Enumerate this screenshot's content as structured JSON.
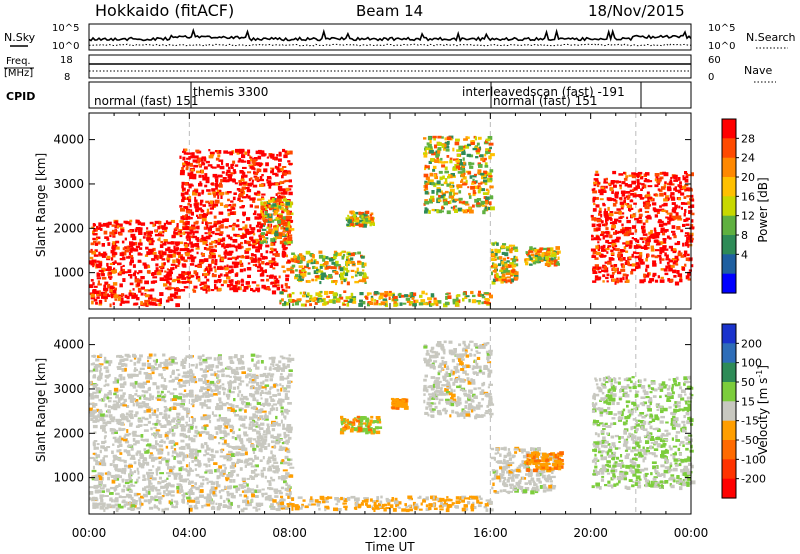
{
  "header": {
    "station": "Hokkaido (fitACF)",
    "beam": "Beam 14",
    "date": "18/Nov/2015"
  },
  "top_panels": {
    "nsky_label": "N.Sky",
    "nsky_ticks": [
      "10^5",
      "10^0"
    ],
    "nsearch_label": "N.Search",
    "nsearch_ticks": [
      "10^5",
      "10^0"
    ],
    "freq_label_1": "Freq.",
    "freq_label_2": "[MHz]",
    "freq_ticks": [
      "18",
      "8"
    ],
    "nave_label": "Nave",
    "nave_ticks": [
      "60",
      "0"
    ],
    "cpid_label": "CPID",
    "cpid_segments": [
      {
        "label": "normal (fast) 151",
        "start_h": 0,
        "end_h": 4.0
      },
      {
        "label": "themis 3300",
        "start_h": 4.0,
        "end_h": 16.0
      },
      {
        "label": "interleavedscan (fast) -191",
        "start_h": 16.0,
        "end_h": 16.0
      },
      {
        "label": "normal (fast) 151",
        "start_h": 16.0,
        "end_h": 21.8
      }
    ]
  },
  "x_axis": {
    "label": "Time UT",
    "ticks": [
      "00:00",
      "04:00",
      "08:00",
      "12:00",
      "16:00",
      "20:00",
      "00:00"
    ]
  },
  "chart_data": [
    {
      "type": "heatmap",
      "title": "",
      "quantity": "Power [dB]",
      "ylabel": "Slant Range [km]",
      "xlabel": "Time UT",
      "xlim_hours": [
        0,
        24
      ],
      "ylim": [
        180,
        4600
      ],
      "yticks": [
        1000,
        2000,
        3000,
        4000
      ],
      "colorbar": {
        "label": "Power [dB]",
        "ticks": [
          "28",
          "24",
          "20",
          "16",
          "12",
          "8",
          "4"
        ],
        "colors": [
          "#ff0000",
          "#ff4a00",
          "#ff8800",
          "#ffc000",
          "#c8d800",
          "#5fb040",
          "#2e8b57",
          "#1e5fa0",
          "#0000ff"
        ]
      },
      "echo_regions": [
        {
          "t": [
            0.0,
            3.6
          ],
          "r": [
            300,
            2200
          ],
          "dominant": "24-28"
        },
        {
          "t": [
            3.6,
            8.0
          ],
          "r": [
            600,
            3800
          ],
          "dominant": "20-28"
        },
        {
          "t": [
            6.8,
            8.0
          ],
          "r": [
            1700,
            2700
          ],
          "dominant": "16-28"
        },
        {
          "t": [
            8.0,
            11.0
          ],
          "r": [
            800,
            1500
          ],
          "dominant": "8-16"
        },
        {
          "t": [
            7.5,
            16.0
          ],
          "r": [
            300,
            600
          ],
          "dominant": "4-20"
        },
        {
          "t": [
            10.2,
            11.3
          ],
          "r": [
            2100,
            2400
          ],
          "dominant": "12-20"
        },
        {
          "t": [
            13.3,
            16.0
          ],
          "r": [
            2400,
            4100
          ],
          "dominant": "12-28"
        },
        {
          "t": [
            16.0,
            17.0
          ],
          "r": [
            800,
            1700
          ],
          "dominant": "12-28"
        },
        {
          "t": [
            17.3,
            18.7
          ],
          "r": [
            1200,
            1600
          ],
          "dominant": "12-16"
        },
        {
          "t": [
            20.0,
            24.0
          ],
          "r": [
            800,
            3300
          ],
          "dominant": "20-28"
        }
      ]
    },
    {
      "type": "heatmap",
      "title": "",
      "quantity": "Velocity [m s^-1]",
      "ylabel": "Slant Range [km]",
      "xlabel": "Time UT",
      "xlim_hours": [
        0,
        24
      ],
      "ylim": [
        180,
        4600
      ],
      "yticks": [
        1000,
        2000,
        3000,
        4000
      ],
      "colorbar": {
        "label": "Velocity [m s",
        "label_exp": "-1",
        "label_close": "]",
        "ticks": [
          "200",
          "100",
          "50",
          "15",
          "-15",
          "-50",
          "-100",
          "-200"
        ],
        "colors": [
          "#1a33cc",
          "#2e6db8",
          "#2e8b57",
          "#7ccd3c",
          "#c8c8c0",
          "#ff9e00",
          "#ff6a00",
          "#ff3300",
          "#ff0000"
        ]
      },
      "echo_regions": [
        {
          "t": [
            0.0,
            8.0
          ],
          "r": [
            300,
            3800
          ],
          "dominant": "-15 to 15 (ground scatter)"
        },
        {
          "t": [
            7.5,
            16.0
          ],
          "r": [
            300,
            600
          ],
          "dominant": "-50 to 15"
        },
        {
          "t": [
            10.0,
            11.5
          ],
          "r": [
            2050,
            2400
          ],
          "dominant": "50-100 / -50"
        },
        {
          "t": [
            12.0,
            12.6
          ],
          "r": [
            2600,
            2800
          ],
          "dominant": "-50 to -100"
        },
        {
          "t": [
            13.3,
            16.0
          ],
          "r": [
            2400,
            4100
          ],
          "dominant": "-15 to 15"
        },
        {
          "t": [
            16.0,
            18.5
          ],
          "r": [
            700,
            1700
          ],
          "dominant": "-15 to 15"
        },
        {
          "t": [
            17.4,
            18.8
          ],
          "r": [
            1200,
            1600
          ],
          "dominant": "-50 to -100"
        },
        {
          "t": [
            20.0,
            24.0
          ],
          "r": [
            800,
            3300
          ],
          "dominant": "15-50 / -15 to 15"
        }
      ]
    }
  ]
}
